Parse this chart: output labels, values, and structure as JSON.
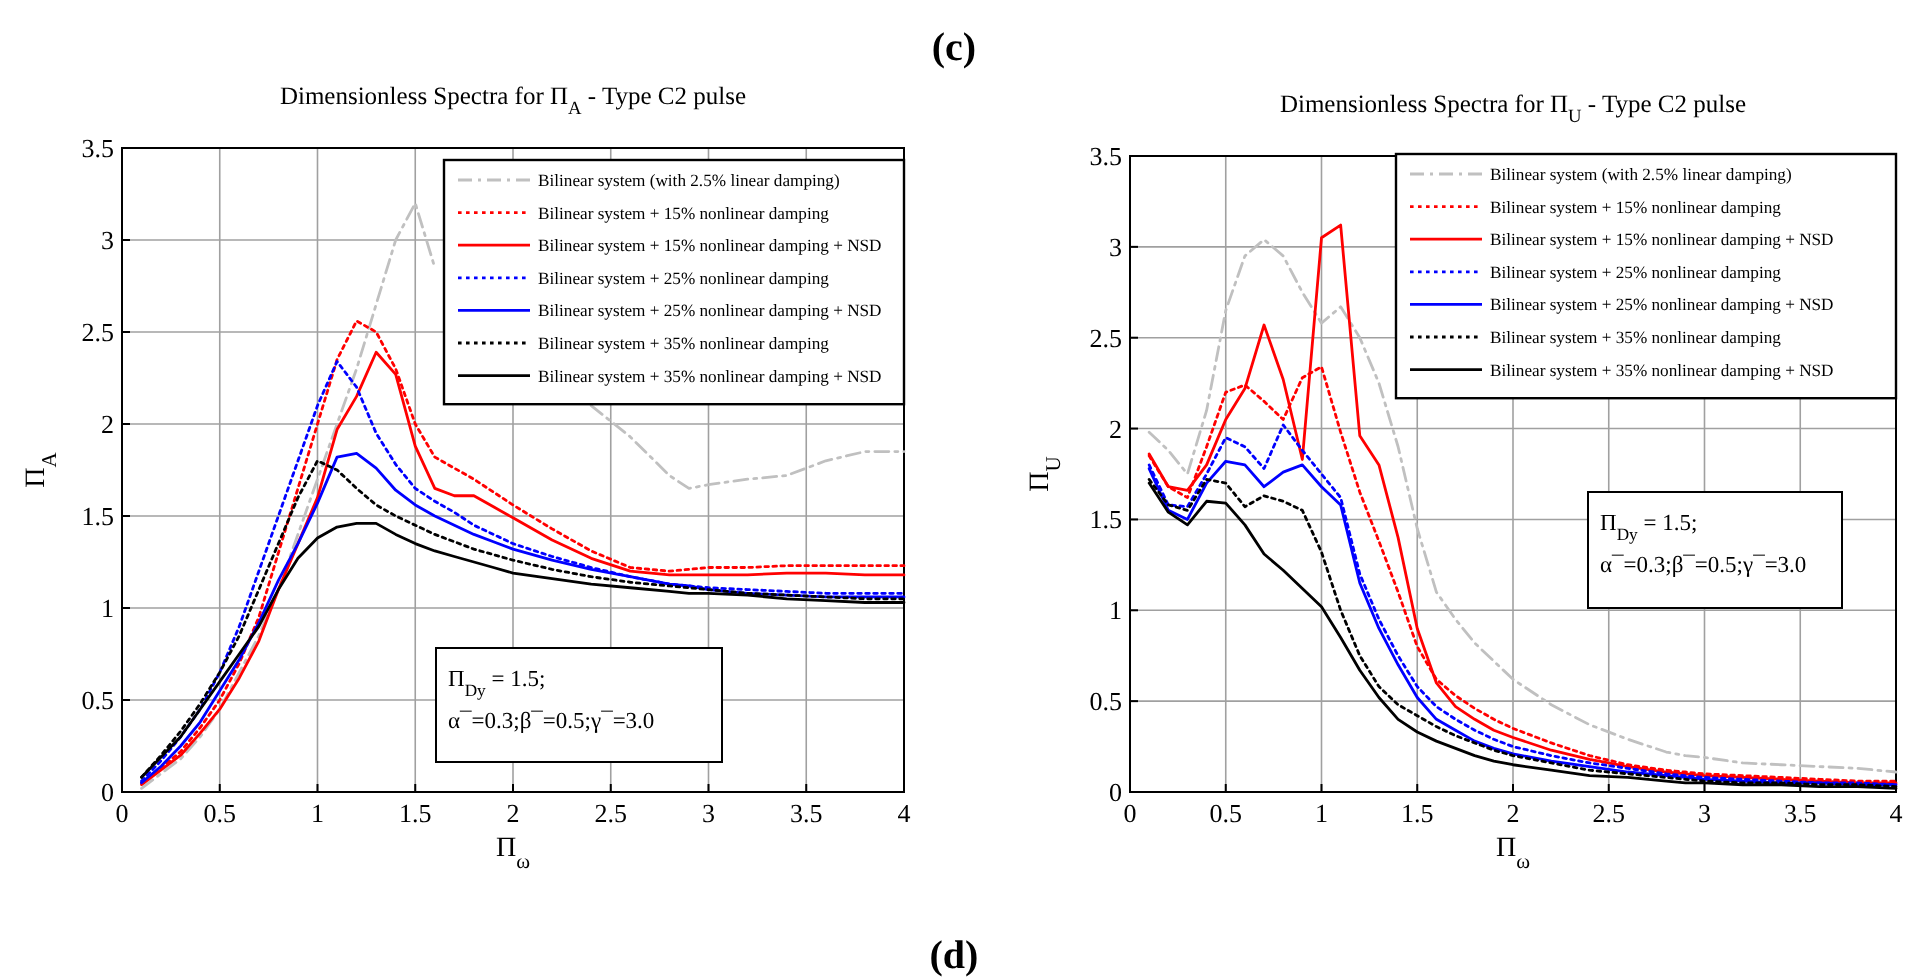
{
  "chart_data": [
    {
      "type": "line",
      "title": "Dimensionless Spectra for Π$_{A}$ - Type C2 pulse",
      "xlabel": "Π$_{ω}$",
      "ylabel": "Π$_{A}$",
      "annotations": [
        "(c)",
        "Π$_{Dy}$ = 1.5;",
        "α¯=0.3;β¯=0.5;γ¯=3.0"
      ],
      "x": [
        0.1,
        0.2,
        0.3,
        0.4,
        0.5,
        0.6,
        0.7,
        0.8,
        0.9,
        1.0,
        1.1,
        1.2,
        1.3,
        1.4,
        1.5,
        1.6,
        1.7,
        1.8,
        1.9,
        2.0,
        2.2,
        2.4,
        2.6,
        2.8,
        2.9,
        3.0,
        3.2,
        3.4,
        3.6,
        3.8,
        4.0
      ],
      "xlim": [
        0,
        4
      ],
      "xticks": [
        0,
        0.5,
        1,
        1.5,
        2,
        2.5,
        3,
        3.5,
        4
      ],
      "ylim": [
        0,
        3.5
      ],
      "yticks": [
        0,
        0.5,
        1,
        1.5,
        2,
        2.5,
        3,
        3.5
      ],
      "grid": true,
      "legend": "top right",
      "series": [
        {
          "name": "Bilinear system (with 2.5% linear damping)",
          "color": "#c0c0c0",
          "line_style": "dashed",
          "values": [
            0.02,
            0.1,
            0.18,
            0.3,
            0.45,
            0.65,
            0.85,
            1.1,
            1.4,
            1.7,
            2.0,
            2.3,
            2.65,
            3.0,
            3.2,
            2.85,
            null,
            null,
            null,
            null,
            null,
            2.1,
            1.93,
            1.72,
            1.65,
            1.67,
            1.7,
            1.72,
            1.8,
            1.85,
            1.85
          ]
        },
        {
          "name": "Bilinear system + 15% nonlinear damping",
          "color": "#ff0000",
          "line_style": "dotted",
          "values": [
            0.05,
            0.13,
            0.22,
            0.35,
            0.5,
            0.7,
            0.95,
            1.3,
            1.65,
            2.0,
            2.35,
            2.56,
            2.5,
            2.3,
            2.0,
            1.82,
            1.76,
            1.7,
            1.63,
            1.56,
            1.43,
            1.31,
            1.22,
            1.2,
            1.21,
            1.22,
            1.22,
            1.23,
            1.23,
            1.23,
            1.23
          ]
        },
        {
          "name": "Bilinear system + 15% nonlinear damping + NSD",
          "color": "#ff0000",
          "line_style": "solid",
          "values": [
            0.04,
            0.12,
            0.2,
            0.32,
            0.45,
            0.62,
            0.82,
            1.1,
            1.35,
            1.6,
            1.97,
            2.15,
            2.39,
            2.27,
            1.88,
            1.65,
            1.61,
            1.61,
            1.55,
            1.49,
            1.37,
            1.27,
            1.2,
            1.18,
            1.18,
            1.18,
            1.18,
            1.19,
            1.19,
            1.18,
            1.18
          ]
        },
        {
          "name": "Bilinear system + 25% nonlinear damping",
          "color": "#0000ff",
          "line_style": "dotted",
          "values": [
            0.06,
            0.17,
            0.3,
            0.45,
            0.65,
            0.9,
            1.2,
            1.5,
            1.8,
            2.1,
            2.34,
            2.2,
            1.95,
            1.78,
            1.65,
            1.58,
            1.52,
            1.45,
            1.4,
            1.35,
            1.28,
            1.22,
            1.17,
            1.13,
            1.12,
            1.11,
            1.1,
            1.09,
            1.08,
            1.08,
            1.08
          ]
        },
        {
          "name": "Bilinear system + 25% nonlinear damping + NSD",
          "color": "#0000ff",
          "line_style": "solid",
          "values": [
            0.05,
            0.14,
            0.25,
            0.38,
            0.55,
            0.72,
            0.92,
            1.15,
            1.35,
            1.57,
            1.82,
            1.84,
            1.76,
            1.64,
            1.56,
            1.5,
            1.45,
            1.4,
            1.36,
            1.32,
            1.26,
            1.21,
            1.17,
            1.13,
            1.12,
            1.1,
            1.08,
            1.07,
            1.06,
            1.06,
            1.06
          ]
        },
        {
          "name": "Bilinear system + 35% nonlinear damping",
          "color": "#000000",
          "line_style": "dotted",
          "values": [
            0.08,
            0.2,
            0.33,
            0.48,
            0.65,
            0.85,
            1.1,
            1.35,
            1.6,
            1.8,
            1.75,
            1.65,
            1.56,
            1.5,
            1.45,
            1.4,
            1.36,
            1.32,
            1.29,
            1.26,
            1.21,
            1.17,
            1.14,
            1.12,
            1.11,
            1.1,
            1.08,
            1.07,
            1.06,
            1.05,
            1.05
          ]
        },
        {
          "name": "Bilinear system + 35% nonlinear damping + NSD",
          "color": "#000000",
          "line_style": "solid",
          "values": [
            0.08,
            0.19,
            0.3,
            0.45,
            0.6,
            0.75,
            0.9,
            1.1,
            1.27,
            1.38,
            1.44,
            1.46,
            1.46,
            1.4,
            1.35,
            1.31,
            1.28,
            1.25,
            1.22,
            1.19,
            1.16,
            1.13,
            1.11,
            1.09,
            1.08,
            1.08,
            1.07,
            1.05,
            1.04,
            1.03,
            1.03
          ]
        }
      ]
    },
    {
      "type": "line",
      "title": "Dimensionless Spectra for Π$_{U}$ - Type C2 pulse",
      "xlabel": "Π$_{ω}$",
      "ylabel": "Π$_{U}$",
      "annotations": [
        "(d)",
        "Π$_{Dy}$ = 1.5;",
        "α¯=0.3;β¯=0.5;γ¯=3.0"
      ],
      "x": [
        0.1,
        0.2,
        0.3,
        0.4,
        0.5,
        0.6,
        0.7,
        0.8,
        0.9,
        1.0,
        1.1,
        1.2,
        1.3,
        1.4,
        1.5,
        1.6,
        1.7,
        1.8,
        1.9,
        2.0,
        2.2,
        2.4,
        2.6,
        2.8,
        2.9,
        3.0,
        3.2,
        3.4,
        3.6,
        3.8,
        4.0
      ],
      "xlim": [
        0,
        4
      ],
      "xticks": [
        0,
        0.5,
        1,
        1.5,
        2,
        2.5,
        3,
        3.5,
        4
      ],
      "ylim": [
        0,
        3.5
      ],
      "yticks": [
        0,
        0.5,
        1,
        1.5,
        2,
        2.5,
        3,
        3.5
      ],
      "grid": true,
      "legend": "top right",
      "series": [
        {
          "name": "Bilinear system (with 2.5% linear damping)",
          "color": "#c0c0c0",
          "line_style": "dashed",
          "values": [
            1.98,
            1.88,
            1.75,
            2.1,
            2.65,
            2.95,
            3.04,
            2.95,
            2.75,
            2.58,
            2.67,
            2.5,
            2.25,
            1.9,
            1.45,
            1.1,
            0.95,
            0.82,
            0.72,
            0.62,
            0.48,
            0.37,
            0.29,
            0.22,
            0.2,
            0.19,
            0.16,
            0.15,
            0.14,
            0.13,
            0.11
          ]
        },
        {
          "name": "Bilinear system + 15% nonlinear damping",
          "color": "#ff0000",
          "line_style": "dotted",
          "values": [
            1.85,
            1.68,
            1.62,
            1.9,
            2.2,
            2.24,
            2.15,
            2.05,
            2.28,
            2.34,
            1.98,
            1.65,
            1.38,
            1.1,
            0.8,
            0.62,
            0.53,
            0.46,
            0.4,
            0.35,
            0.27,
            0.2,
            0.15,
            0.12,
            0.11,
            0.1,
            0.09,
            0.08,
            0.07,
            0.06,
            0.06
          ]
        },
        {
          "name": "Bilinear system + 15% nonlinear damping + NSD",
          "color": "#ff0000",
          "line_style": "solid",
          "values": [
            1.86,
            1.68,
            1.66,
            1.8,
            2.05,
            2.22,
            2.57,
            2.27,
            1.83,
            3.05,
            3.12,
            1.96,
            1.8,
            1.4,
            0.9,
            0.6,
            0.47,
            0.4,
            0.34,
            0.3,
            0.23,
            0.18,
            0.14,
            0.11,
            0.1,
            0.09,
            0.08,
            0.07,
            0.06,
            0.05,
            0.05
          ]
        },
        {
          "name": "Bilinear system + 25% nonlinear damping",
          "color": "#0000ff",
          "line_style": "dotted",
          "values": [
            1.8,
            1.58,
            1.57,
            1.75,
            1.95,
            1.9,
            1.78,
            2.02,
            1.88,
            1.75,
            1.62,
            1.2,
            0.95,
            0.75,
            0.58,
            0.47,
            0.4,
            0.34,
            0.29,
            0.25,
            0.2,
            0.16,
            0.13,
            0.1,
            0.09,
            0.08,
            0.07,
            0.06,
            0.05,
            0.05,
            0.04
          ]
        },
        {
          "name": "Bilinear system + 25% nonlinear damping + NSD",
          "color": "#0000ff",
          "line_style": "solid",
          "values": [
            1.78,
            1.55,
            1.5,
            1.7,
            1.82,
            1.8,
            1.68,
            1.76,
            1.8,
            1.68,
            1.58,
            1.15,
            0.9,
            0.7,
            0.52,
            0.4,
            0.34,
            0.28,
            0.24,
            0.21,
            0.17,
            0.14,
            0.11,
            0.09,
            0.08,
            0.07,
            0.06,
            0.05,
            0.05,
            0.04,
            0.04
          ]
        },
        {
          "name": "Bilinear system + 35% nonlinear damping",
          "color": "#000000",
          "line_style": "dotted",
          "values": [
            1.72,
            1.58,
            1.55,
            1.72,
            1.7,
            1.57,
            1.63,
            1.6,
            1.55,
            1.32,
            1.0,
            0.75,
            0.58,
            0.48,
            0.42,
            0.36,
            0.31,
            0.27,
            0.23,
            0.2,
            0.16,
            0.12,
            0.1,
            0.08,
            0.07,
            0.06,
            0.05,
            0.05,
            0.04,
            0.04,
            0.03
          ]
        },
        {
          "name": "Bilinear system + 35% nonlinear damping + NSD",
          "color": "#000000",
          "line_style": "solid",
          "values": [
            1.7,
            1.54,
            1.47,
            1.6,
            1.59,
            1.47,
            1.31,
            1.22,
            1.12,
            1.02,
            0.85,
            0.67,
            0.52,
            0.4,
            0.33,
            0.28,
            0.24,
            0.2,
            0.17,
            0.15,
            0.12,
            0.09,
            0.08,
            0.06,
            0.05,
            0.05,
            0.04,
            0.04,
            0.03,
            0.03,
            0.02
          ]
        }
      ]
    }
  ]
}
